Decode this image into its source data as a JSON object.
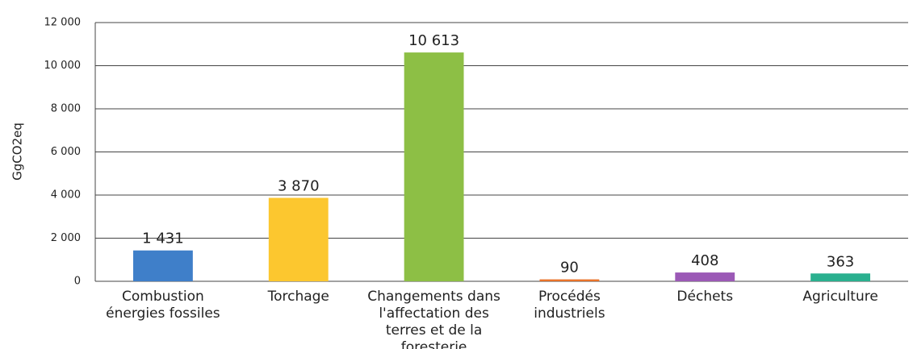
{
  "chart_data": {
    "type": "bar",
    "y_label": "GgCO2eq",
    "categories": [
      "Combustion énergies fossiles",
      "Torchage",
      "Changements dans l'affectation des terres et de la foresterie",
      "Procédés industriels",
      "Déchets",
      "Agriculture"
    ],
    "values": [
      1431,
      3870,
      10613,
      90,
      408,
      363
    ],
    "value_labels": [
      "1 431",
      "3 870",
      "10 613",
      "90",
      "408",
      "363"
    ],
    "colors": [
      "#3f7fc9",
      "#fcc72f",
      "#8dbf45",
      "#e8732a",
      "#9b59b6",
      "#2ab08f"
    ],
    "ylim": [
      0,
      12000
    ],
    "yticks": [
      0,
      {
        "value": 2000,
        "label": "2 000"
      },
      {
        "value": 4000,
        "label": "4 000"
      },
      {
        "value": 6000,
        "label": "6 000"
      },
      {
        "value": 8000,
        "label": "8 000"
      },
      {
        "value": 10000,
        "label": "10 000"
      },
      {
        "value": 12000,
        "label": "12 000"
      }
    ],
    "grid": true
  }
}
